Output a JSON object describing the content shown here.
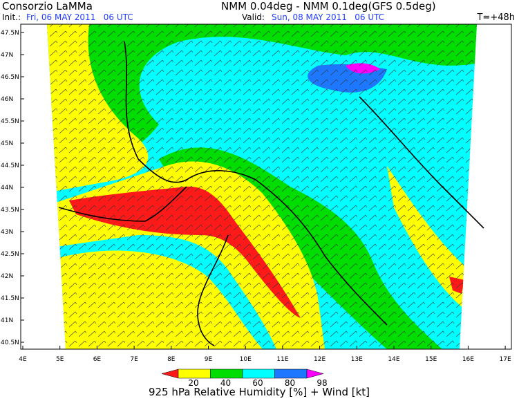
{
  "header": {
    "title": "Consorzio LaMMa",
    "model": "NMM 0.04deg - NMM 0.1deg(GFS 0.5deg)",
    "init_label": "Init.:",
    "init_value": "Fri, 06 MAY 2011   06 UTC",
    "valid_label": "Valid:",
    "valid_value": "Sun, 08 MAY 2011   06 UTC",
    "lead_time": "T=+48h"
  },
  "axes": {
    "y_labels": [
      "47.5N",
      "47N",
      "46.5N",
      "46N",
      "45.5N",
      "45N",
      "44.5N",
      "44N",
      "43.5N",
      "43N",
      "42.5N",
      "42N",
      "41.5N",
      "41N",
      "40.5N"
    ],
    "x_labels": [
      "4E",
      "5E",
      "6E",
      "7E",
      "8E",
      "9E",
      "10E",
      "11E",
      "12E",
      "13E",
      "14E",
      "15E",
      "16E",
      "17E"
    ]
  },
  "colorbar": {
    "labels": [
      "20",
      "40",
      "60",
      "80",
      "98"
    ],
    "colors": [
      "#ff1a1a",
      "#ffff00",
      "#00dd00",
      "#00ffff",
      "#1e78ff",
      "#ff00ff"
    ]
  },
  "caption": "925 hPa Relative Humidity [%] + Wind [kt]"
}
